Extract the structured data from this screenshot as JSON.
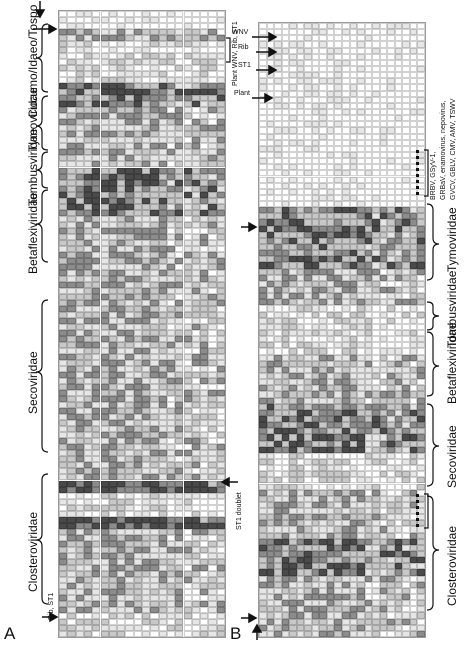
{
  "panel_a": {
    "letter": "A",
    "family_labels": [
      "Closteroviridae",
      "Secoviridae",
      "Betaflexiviridae",
      "Tombusviridae",
      "Tymoviridae",
      "Cucumo/Idaeo/Tospo"
    ],
    "annotations": {
      "rib_st1": "Rib, ST1",
      "st1_doublet": "ST1 doublet",
      "plant_wnv_rib_st1": "Plant WNV, Rib, ST1"
    }
  },
  "panel_b": {
    "letter": "B",
    "family_labels": [
      "Closteroviridae",
      "Secoviridae",
      "Betaflexiviridae",
      "Tombusviridae",
      "Tymoviridae"
    ],
    "row_labels": [
      "WNV",
      "Rib",
      "ST1",
      "Plant"
    ],
    "virus_list_line1": "BRBV, GSyV-1,",
    "virus_list_line2": "GRBaV, enamovirus, nepovirus,",
    "virus_list_line3": "GVCV, GBLV, CMV, AMV, TSWV"
  },
  "colors": {
    "dark": "#4a4a4a",
    "mid": "#8c8c8c",
    "light": "#c8c8c8",
    "pale": "#e6e6e6",
    "white": "#ffffff"
  }
}
